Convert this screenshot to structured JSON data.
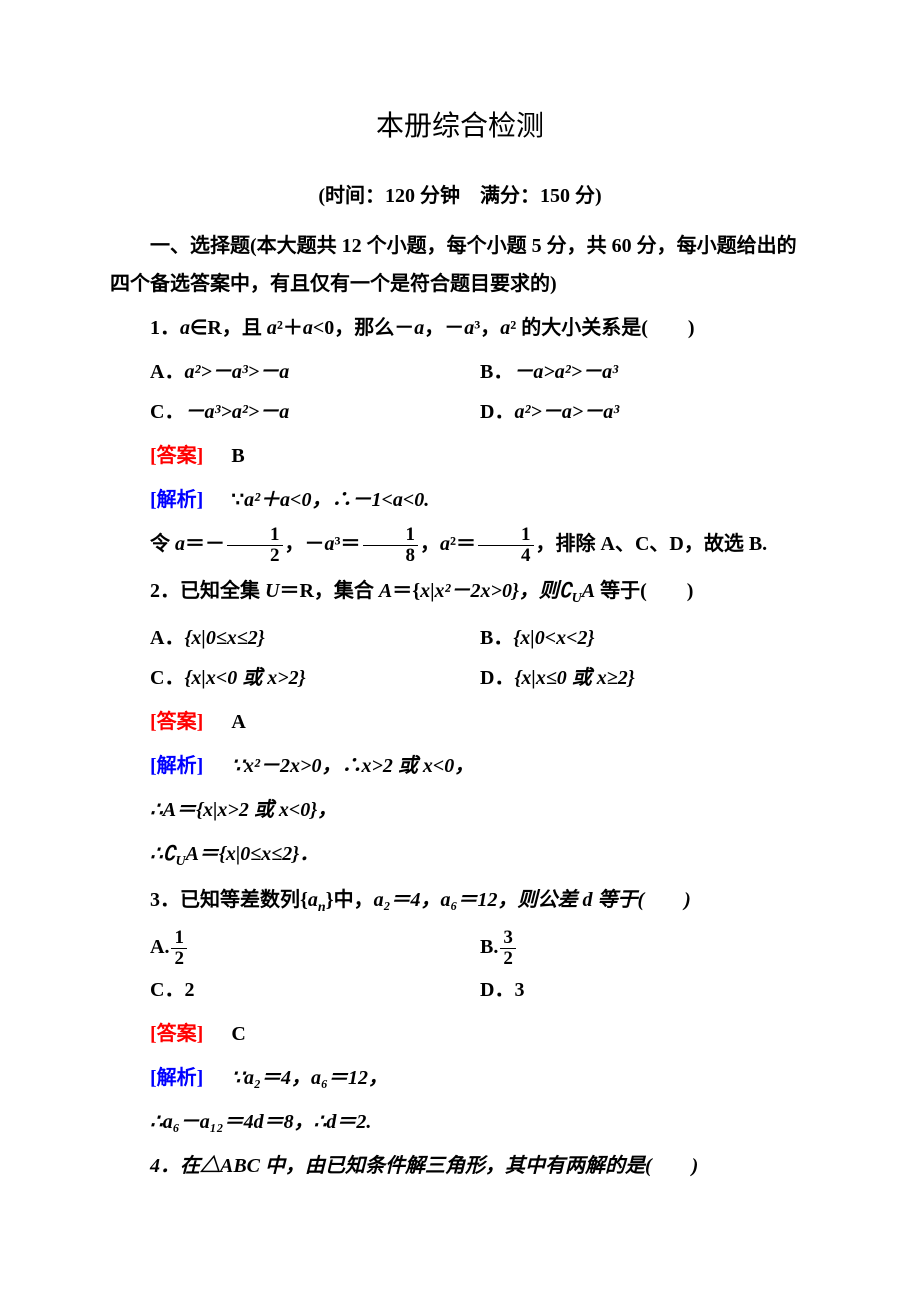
{
  "title": "本册综合检测",
  "subtitle": "(时间：120 分钟　满分：150 分)",
  "section1": "一、选择题(本大题共 12 个小题，每个小题 5 分，共 60 分，每小题给出的四个备选答案中，有且仅有一个是符合题目要求的)",
  "colors": {
    "answer": "#ff0000",
    "explain": "#0000ff",
    "text": "#000000",
    "bg": "#ffffff"
  },
  "q1": {
    "stem_pre": "1．",
    "stem_a": "a",
    "stem_mid1": "∈R，且 ",
    "stem_mid2": "²＋",
    "stem_mid3": "<0，那么－",
    "stem_mid4": "，－",
    "stem_mid5": "³，",
    "stem_end": "² 的大小关系是(　　)",
    "A_pre": "A．",
    "A_body": "a²>－a³>－a",
    "B_pre": "B．",
    "B_body": "－a>a²>－a³",
    "C_pre": "C．",
    "C_body": "－a³>a²>－a",
    "D_pre": "D．",
    "D_body": "a²>－a>－a³",
    "ans": "B",
    "exp1_pre": "∵",
    "exp1": "a²＋a<0，∴－1<a<0.",
    "exp2_pre": "令 ",
    "exp2_mid": "＝－",
    "exp2_mid2": "，－",
    "exp2_mid3": "³＝",
    "exp2_mid4": "，",
    "exp2_mid5": "²＝",
    "exp2_end": "，排除 A、C、D，故选 B."
  },
  "q2": {
    "stem": "2．已知全集 ",
    "u": "U",
    "eq1": "＝R，集合 ",
    "A": "A",
    "eq2": "＝{",
    "x": "x",
    "bar": "|",
    "body": "x²－2x>0}，则∁",
    "sub": "U",
    "end": " 等于(　　)",
    "Apre": "A．",
    "Abody": "{x|0≤x≤2}",
    "Bpre": "B．",
    "Bbody": "{x|0<x<2}",
    "Cpre": "C．",
    "Cbody": "{x|x<0 或 x>2}",
    "Dpre": "D．",
    "Dbody": "{x|x≤0 或 x≥2}",
    "ans": "A",
    "e1": "∵x²－2x>0，∴x>2 或 x<0，",
    "e2": "∴A＝{x|x>2 或 x<0}，",
    "e3": "∴∁",
    "e3s": "U",
    "e3b": "A＝{x|0≤x≤2}．"
  },
  "q3": {
    "stem": "3．已知等差数列{",
    "an": "a",
    "sub": "n",
    "mid": "}中，",
    "a2": "a₂＝4，a₆＝12，则公差 d 等于(　　)",
    "Apre": "A.",
    "An": "1",
    "Ad": "2",
    "Bpre": "B.",
    "Bn": "3",
    "Bd": "2",
    "Cpre": "C．",
    "Cbody": "2",
    "Dpre": "D．",
    "Dbody": "3",
    "ans": "C",
    "e1": "∵a₂＝4，a₆＝12，",
    "e2": "∴a₆－a₁₂＝4d＝8，∴d＝2."
  },
  "q4": {
    "stem": "4．在△ABC 中，由已知条件解三角形，其中有两解的是(　　)"
  },
  "labels": {
    "answer": "[答案]",
    "explain": "[解析]"
  }
}
